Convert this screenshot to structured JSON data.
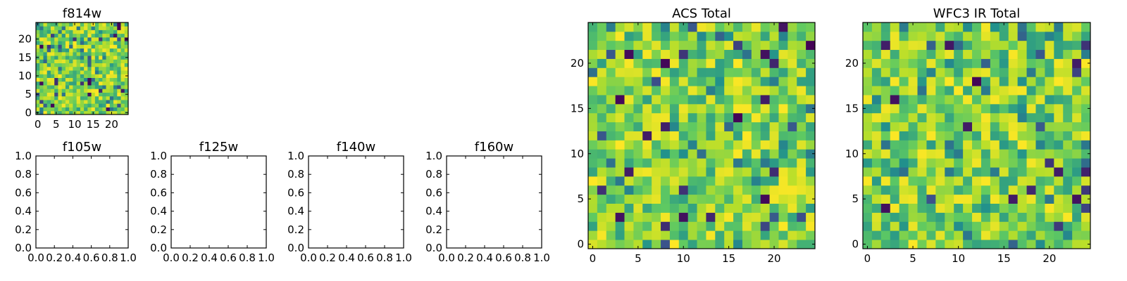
{
  "chart_data": [
    {
      "id": "f814w",
      "type": "heatmap",
      "title": "f814w",
      "grid_size": 25,
      "seed": 814,
      "colormap": "viridis",
      "xticks": [
        0,
        5,
        10,
        15,
        20
      ],
      "yticks": [
        0,
        5,
        10,
        15,
        20
      ],
      "xlim": [
        -0.5,
        24.5
      ],
      "ylim": [
        -0.5,
        24.5
      ]
    },
    {
      "id": "f105w",
      "type": "empty",
      "title": "f105w",
      "xticks": [
        "0.0",
        "0.2",
        "0.4",
        "0.6",
        "0.8",
        "1.0"
      ],
      "yticks": [
        "0.0",
        "0.2",
        "0.4",
        "0.6",
        "0.8",
        "1.0"
      ],
      "xlim": [
        0,
        1
      ],
      "ylim": [
        0,
        1
      ]
    },
    {
      "id": "f125w",
      "type": "empty",
      "title": "f125w",
      "xticks": [
        "0.0",
        "0.2",
        "0.4",
        "0.6",
        "0.8",
        "1.0"
      ],
      "yticks": [
        "0.0",
        "0.2",
        "0.4",
        "0.6",
        "0.8",
        "1.0"
      ],
      "xlim": [
        0,
        1
      ],
      "ylim": [
        0,
        1
      ]
    },
    {
      "id": "f140w",
      "type": "empty",
      "title": "f140w",
      "xticks": [
        "0.0",
        "0.2",
        "0.4",
        "0.6",
        "0.8",
        "1.0"
      ],
      "yticks": [
        "0.0",
        "0.2",
        "0.4",
        "0.6",
        "0.8",
        "1.0"
      ],
      "xlim": [
        0,
        1
      ],
      "ylim": [
        0,
        1
      ]
    },
    {
      "id": "f160w",
      "type": "empty",
      "title": "f160w",
      "xticks": [
        "0.0",
        "0.2",
        "0.4",
        "0.6",
        "0.8",
        "1.0"
      ],
      "yticks": [
        "0.0",
        "0.2",
        "0.4",
        "0.6",
        "0.8",
        "1.0"
      ],
      "xlim": [
        0,
        1
      ],
      "ylim": [
        0,
        1
      ]
    },
    {
      "id": "acs-total",
      "type": "heatmap",
      "title": "ACS Total",
      "grid_size": 25,
      "seed": 2024,
      "colormap": "viridis",
      "xticks": [
        0,
        5,
        10,
        15,
        20
      ],
      "yticks": [
        0,
        5,
        10,
        15,
        20
      ],
      "xlim": [
        -0.5,
        24.5
      ],
      "ylim": [
        -0.5,
        24.5
      ]
    },
    {
      "id": "wfc3-ir-total",
      "type": "heatmap",
      "title": "WFC3 IR Total",
      "grid_size": 25,
      "seed": 3160,
      "colormap": "viridis",
      "xticks": [
        0,
        5,
        10,
        15,
        20
      ],
      "yticks": [
        0,
        5,
        10,
        15,
        20
      ],
      "xlim": [
        -0.5,
        24.5
      ],
      "ylim": [
        -0.5,
        24.5
      ]
    }
  ],
  "colors": {
    "viridis": [
      "#440154",
      "#3b528b",
      "#21918c",
      "#5ec962",
      "#b5de2b",
      "#fde725"
    ],
    "axis": "#000000",
    "background": "#ffffff"
  }
}
